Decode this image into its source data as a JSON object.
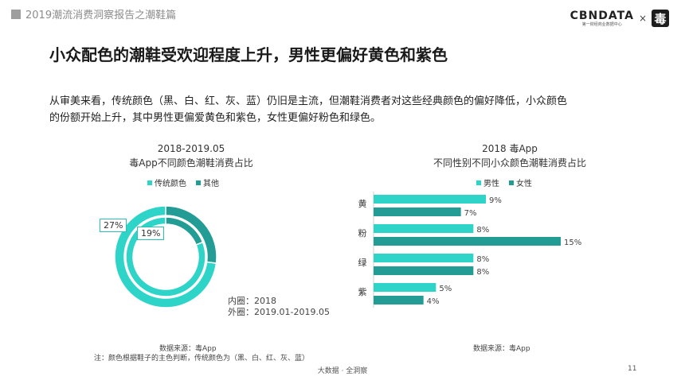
{
  "header": {
    "title": "2019潮流消费洞察报告之潮鞋篇"
  },
  "brand": {
    "name": "CBNDATA",
    "sub": "第一财经商业数据中心",
    "times": "×",
    "logo_char": "毒"
  },
  "page": {
    "title": "小众配色的潮鞋受欢迎程度上升，男性更偏好黄色和紫色",
    "body_line1": "从审美来看，传统颜色（黑、白、红、灰、蓝）仍旧是主流，但潮鞋消费者对这些经典颜色的偏好降低，小众颜色",
    "body_line2": "的份额开始上升，其中男性更偏爱黄色和紫色，女性更偏好粉色和绿色。"
  },
  "colors": {
    "accent": "#2fd4c8",
    "accent_dark": "#229c94",
    "inner": "#2fd4c8"
  },
  "chart_data": [
    {
      "type": "pie",
      "title": "2018-2019.05",
      "subtitle": "毒App不同颜色潮鞋消费占比",
      "legend": [
        "传统颜色",
        "其他"
      ],
      "inner_ring": {
        "label": "内圈：2018",
        "values": [
          81,
          19
        ],
        "data_label": "19%"
      },
      "outer_ring": {
        "label": "外圈：2019.01-2019.05",
        "values": [
          73,
          27
        ],
        "data_label": "27%"
      },
      "source": "数据来源：毒App",
      "note": "注：颜色根据鞋子的主色判断，传统颜色为（黑、白、红、灰、蓝）"
    },
    {
      "type": "bar",
      "title": "2018 毒App",
      "subtitle": "不同性别不同小众颜色潮鞋消费占比",
      "categories": [
        "黄",
        "粉",
        "绿",
        "紫"
      ],
      "series": [
        {
          "name": "男性",
          "values": [
            9,
            8,
            8,
            5
          ],
          "labels": [
            "9%",
            "8%",
            "8%",
            "5%"
          ]
        },
        {
          "name": "女性",
          "values": [
            7,
            15,
            8,
            4
          ],
          "labels": [
            "7%",
            "15%",
            "8%",
            "4%"
          ]
        }
      ],
      "xlim": [
        0,
        16
      ],
      "source": "数据来源：毒App"
    }
  ],
  "footer": {
    "center": "大数据 · 全洞察",
    "page_number": "11"
  }
}
